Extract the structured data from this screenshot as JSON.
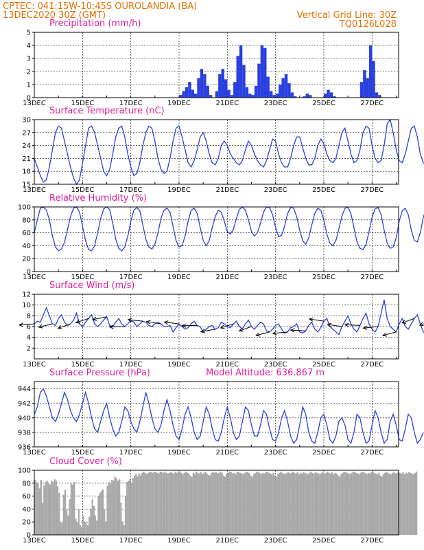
{
  "header": {
    "line1_left": "CPTEC:  041:15W-10:45S  OUROLANDIA (BA)",
    "line2_left": "13DEC2020 30Z (GMT)",
    "line2_right": "Vertical Grid Line: 30Z",
    "line3_right": "TQ0126L028"
  },
  "colors": {
    "series": "#2a3fe0",
    "cloud": "#a8a8a8",
    "title": "#e0209a",
    "header": "#e07000"
  },
  "x_axis": {
    "labels": [
      "13DEC",
      "15DEC",
      "17DEC",
      "19DEC",
      "21DEC",
      "23DEC",
      "25DEC",
      "27DEC"
    ],
    "day_start": 0,
    "day_end": 15.1,
    "minor_label": "30Z"
  },
  "chart_data": [
    {
      "type": "bar",
      "title": "Precipitation (mm/h)",
      "ylim": [
        0,
        5
      ],
      "yticks": [
        0,
        1,
        2,
        3,
        4,
        5
      ],
      "x_units": "days since 13DEC 30Z (3-hourly)",
      "values": [
        0,
        0,
        0,
        0,
        0,
        0,
        0,
        0,
        0,
        0,
        0,
        0,
        0,
        0,
        0,
        0,
        0,
        0,
        0,
        0,
        0,
        0,
        0,
        0,
        0,
        0,
        0,
        0,
        0,
        0,
        0,
        0,
        0,
        0,
        0,
        0,
        0,
        0,
        0,
        0,
        0,
        0,
        0,
        0,
        0,
        0,
        0,
        0,
        0.2,
        0.5,
        0.8,
        1.2,
        0.6,
        0.3,
        1.5,
        2.2,
        1.8,
        0.9,
        0.2,
        0,
        0.5,
        1.8,
        2.2,
        1.4,
        0.6,
        0.2,
        1.2,
        3.2,
        4.0,
        2.5,
        0.8,
        0.3,
        0.2,
        0.9,
        2.6,
        4.0,
        3.8,
        1.6,
        0.5,
        0.2,
        0.3,
        1.0,
        1.5,
        1.8,
        1.1,
        0.4,
        0.1,
        0,
        0,
        0.1,
        0.3,
        0.2,
        0,
        0,
        0,
        0,
        0.3,
        0.6,
        0.4,
        0.1,
        0,
        0,
        0,
        0,
        0,
        0,
        0,
        0,
        1.2,
        2.1,
        1.5,
        4.0,
        2.8,
        0.4,
        0.2
      ],
      "x_step_days": 0.125,
      "bar_color": "#2a3fe0"
    },
    {
      "type": "line",
      "title": "Surface Temperature (nC)",
      "ylim": [
        15,
        30
      ],
      "yticks": [
        15,
        18,
        21,
        24,
        27,
        30
      ],
      "x_step_days": 0.125,
      "values": [
        21,
        19,
        17,
        15.5,
        16,
        19,
        23,
        27,
        28.5,
        28,
        25,
        22,
        19,
        16.5,
        15,
        16,
        20,
        24,
        28,
        28.5,
        27,
        24,
        21,
        18,
        17,
        18.5,
        22,
        26,
        28,
        28.5,
        26,
        22,
        19,
        17,
        17.5,
        20,
        24,
        27,
        28.5,
        28,
        25,
        21,
        18.5,
        17.5,
        18,
        21,
        25,
        28,
        28.5,
        26,
        23,
        20,
        19,
        20.5,
        23,
        26,
        27,
        25,
        22,
        20,
        19.5,
        21,
        24,
        25,
        24,
        22,
        21,
        20,
        19.5,
        20.5,
        23,
        25,
        24,
        22,
        20.5,
        19.5,
        19,
        20.5,
        23,
        25.5,
        25,
        22,
        20,
        19,
        19,
        21,
        24,
        26,
        26,
        23.5,
        21,
        19.5,
        19.5,
        21,
        24,
        25.5,
        24.5,
        22,
        20.5,
        20,
        21,
        24,
        27,
        28,
        25,
        22,
        20,
        20.5,
        23,
        27,
        28.5,
        28,
        24,
        21,
        20,
        20.5,
        24,
        29,
        30,
        27,
        23,
        20.5,
        20,
        22,
        25,
        28,
        28.5,
        26,
        22,
        20,
        19.5,
        21,
        24,
        25,
        23,
        22
      ],
      "color": "#2a3fe0"
    },
    {
      "type": "line",
      "title": "Relative Humidity (%)",
      "ylim": [
        0,
        100
      ],
      "yticks": [
        0,
        20,
        40,
        60,
        80,
        100
      ],
      "x_step_days": 0.125,
      "values": [
        60,
        80,
        98,
        100,
        95,
        80,
        55,
        38,
        32,
        35,
        45,
        65,
        85,
        98,
        100,
        92,
        70,
        48,
        34,
        32,
        40,
        60,
        82,
        97,
        100,
        96,
        75,
        50,
        36,
        32,
        38,
        55,
        78,
        95,
        99,
        94,
        72,
        50,
        38,
        35,
        42,
        60,
        82,
        95,
        98,
        92,
        70,
        48,
        38,
        40,
        55,
        78,
        95,
        98,
        90,
        68,
        48,
        40,
        48,
        68,
        85,
        95,
        92,
        78,
        62,
        58,
        65,
        82,
        96,
        100,
        95,
        80,
        62,
        55,
        60,
        75,
        92,
        100,
        99,
        88,
        68,
        54,
        56,
        70,
        90,
        99,
        98,
        85,
        64,
        48,
        42,
        52,
        72,
        90,
        98,
        95,
        80,
        58,
        44,
        40,
        48,
        66,
        86,
        98,
        99,
        90,
        68,
        46,
        36,
        34,
        42,
        62,
        84,
        97,
        99,
        88,
        64,
        44,
        36,
        38,
        52,
        78,
        94,
        98,
        88,
        64,
        48,
        46,
        60,
        84,
        98
      ],
      "color": "#2a3fe0"
    },
    {
      "type": "line",
      "title": "Surface Wind (m/s)",
      "ylim": [
        0,
        12
      ],
      "yticks": [
        2,
        4,
        6,
        8,
        10,
        12
      ],
      "x_step_days": 0.125,
      "values": [
        6.5,
        7,
        6.8,
        8.2,
        9.5,
        8,
        6.5,
        6.2,
        7.5,
        8.2,
        6.8,
        6.2,
        6.5,
        7.2,
        8.5,
        6.5,
        6,
        6.8,
        7.5,
        8.2,
        6.5,
        6,
        6.5,
        7.2,
        7.8,
        6.2,
        6,
        6.8,
        7.5,
        6.5,
        6,
        6.5,
        7.2,
        6.8,
        6,
        6.5,
        7,
        6.8,
        6.2,
        6,
        6.5,
        6.8,
        6.5,
        6,
        6,
        6.2,
        5,
        5.8,
        6.5,
        6,
        5.5,
        5.8,
        6.5,
        7,
        6.2,
        6,
        5,
        5.5,
        6,
        6.2,
        5.5,
        5.8,
        6.8,
        6.5,
        6,
        5.8,
        6.5,
        7,
        6,
        5.6,
        6.5,
        7.2,
        6,
        5.5,
        6.2,
        6.8,
        6.5,
        5.2,
        5,
        5.5,
        6.2,
        6.5,
        5.5,
        4.8,
        5,
        5.8,
        6,
        6.5,
        5,
        4.8,
        5.2,
        6.2,
        6.8,
        5.5,
        5,
        5.8,
        7,
        7.5,
        6,
        5.5,
        5,
        4.5,
        6,
        7,
        8,
        6.5,
        5.5,
        5,
        6.2,
        7.5,
        8.5,
        6.5,
        5.5,
        5,
        6,
        8.5,
        11,
        7.5,
        6,
        5.5,
        5,
        6.5,
        7.5,
        6,
        5.5,
        6.5,
        7.5,
        8.2,
        6.5,
        5,
        4.5,
        6,
        7
      ],
      "color": "#2a3fe0",
      "arrows_every": 3
    },
    {
      "type": "line",
      "title": "Surface Pressure (hPa)",
      "annotation": "Model Altitude: 636.867 m",
      "ylim": [
        936,
        945
      ],
      "yticks": [
        936,
        938,
        940,
        942,
        944
      ],
      "x_step_days": 0.125,
      "values": [
        940.5,
        941.5,
        943.5,
        944,
        943,
        941.5,
        940,
        939.5,
        940.5,
        942,
        943.5,
        942.5,
        941,
        940,
        939.5,
        940.5,
        942,
        943.5,
        942,
        940,
        938.5,
        938,
        939.5,
        941,
        942,
        940,
        938.5,
        937.5,
        938,
        939.5,
        941.5,
        941,
        939.5,
        938.5,
        938,
        939.5,
        941.5,
        943.5,
        942,
        940,
        938.5,
        938,
        939,
        941,
        942.5,
        941,
        939,
        937.5,
        937,
        938.5,
        940.5,
        941.5,
        940,
        938,
        937,
        937.5,
        939.5,
        941.5,
        940.5,
        938.5,
        937,
        936.8,
        938,
        940,
        941.5,
        940,
        938,
        937,
        937.5,
        939.5,
        941.5,
        941,
        939,
        937.5,
        937.5,
        939,
        941,
        940.5,
        938.5,
        937,
        936.8,
        938,
        940,
        941,
        939.5,
        937.5,
        936.5,
        937,
        939,
        941.5,
        940.5,
        938,
        936.8,
        936.5,
        938,
        940,
        940.5,
        939,
        937,
        936.5,
        937.5,
        939.5,
        940,
        939,
        937,
        936.5,
        938,
        940.5,
        940,
        938,
        936.5,
        936.8,
        939,
        941,
        940,
        938,
        936.5,
        937,
        939.5,
        940.5,
        939,
        937,
        936.8,
        938.5,
        940.5,
        940,
        938,
        936.5,
        937,
        938
      ],
      "color": "#2a3fe0"
    },
    {
      "type": "bar",
      "title": "Cloud Cover (%)",
      "ylim": [
        0,
        100
      ],
      "yticks": [
        0,
        20,
        40,
        60,
        80,
        100
      ],
      "x_step_days": 0.0625,
      "values": [
        85,
        82,
        80,
        72,
        85,
        50,
        76,
        82,
        84,
        80,
        78,
        84,
        82,
        86,
        84,
        75,
        65,
        20,
        18,
        62,
        70,
        40,
        30,
        55,
        80,
        78,
        82,
        25,
        20,
        40,
        15,
        12,
        30,
        20,
        18,
        15,
        28,
        40,
        55,
        45,
        30,
        22,
        60,
        65,
        68,
        70,
        40,
        20,
        76,
        82,
        80,
        85,
        84,
        90,
        88,
        84,
        86,
        50,
        20,
        15,
        60,
        82,
        84,
        86,
        80,
        88,
        92,
        94,
        90,
        95,
        92,
        96,
        98,
        96,
        94,
        96,
        98,
        97,
        96,
        98,
        97,
        96,
        95,
        98,
        97,
        96,
        98,
        96,
        95,
        96,
        97,
        96,
        95,
        98,
        96,
        97,
        98,
        96,
        94,
        96,
        98,
        96,
        95,
        92,
        90,
        96,
        94,
        98,
        96,
        95,
        97,
        94,
        96,
        98,
        95,
        93,
        92,
        96,
        98,
        96,
        97,
        95,
        96,
        98,
        96,
        92,
        90,
        94,
        96,
        98,
        97,
        95,
        96,
        94,
        98,
        97,
        96,
        95,
        94,
        96,
        98,
        97,
        96,
        92,
        90,
        94,
        96,
        98,
        97,
        96,
        94,
        96,
        95,
        97,
        98,
        96,
        95,
        94,
        96,
        92,
        90,
        94,
        96,
        98,
        96,
        95,
        94,
        96,
        97,
        95,
        96,
        98,
        96,
        95,
        97,
        94,
        96,
        95,
        97,
        96,
        95,
        94,
        96,
        98,
        96,
        95,
        97,
        96,
        95,
        94,
        96,
        97,
        95,
        96,
        98,
        96,
        95,
        97,
        94,
        96,
        95,
        92,
        90,
        94,
        96,
        98,
        97,
        96,
        95,
        94,
        96,
        98,
        97,
        96,
        95,
        94,
        96,
        98,
        97,
        96,
        94,
        96,
        95,
        97,
        98,
        96,
        95,
        94,
        96,
        92,
        90,
        94,
        96,
        98,
        96,
        95,
        94,
        96,
        97,
        95,
        96,
        98,
        96,
        95,
        97,
        94,
        96,
        95,
        97,
        96,
        95,
        94,
        96,
        98
      ],
      "bar_color": "#a8a8a8"
    }
  ]
}
